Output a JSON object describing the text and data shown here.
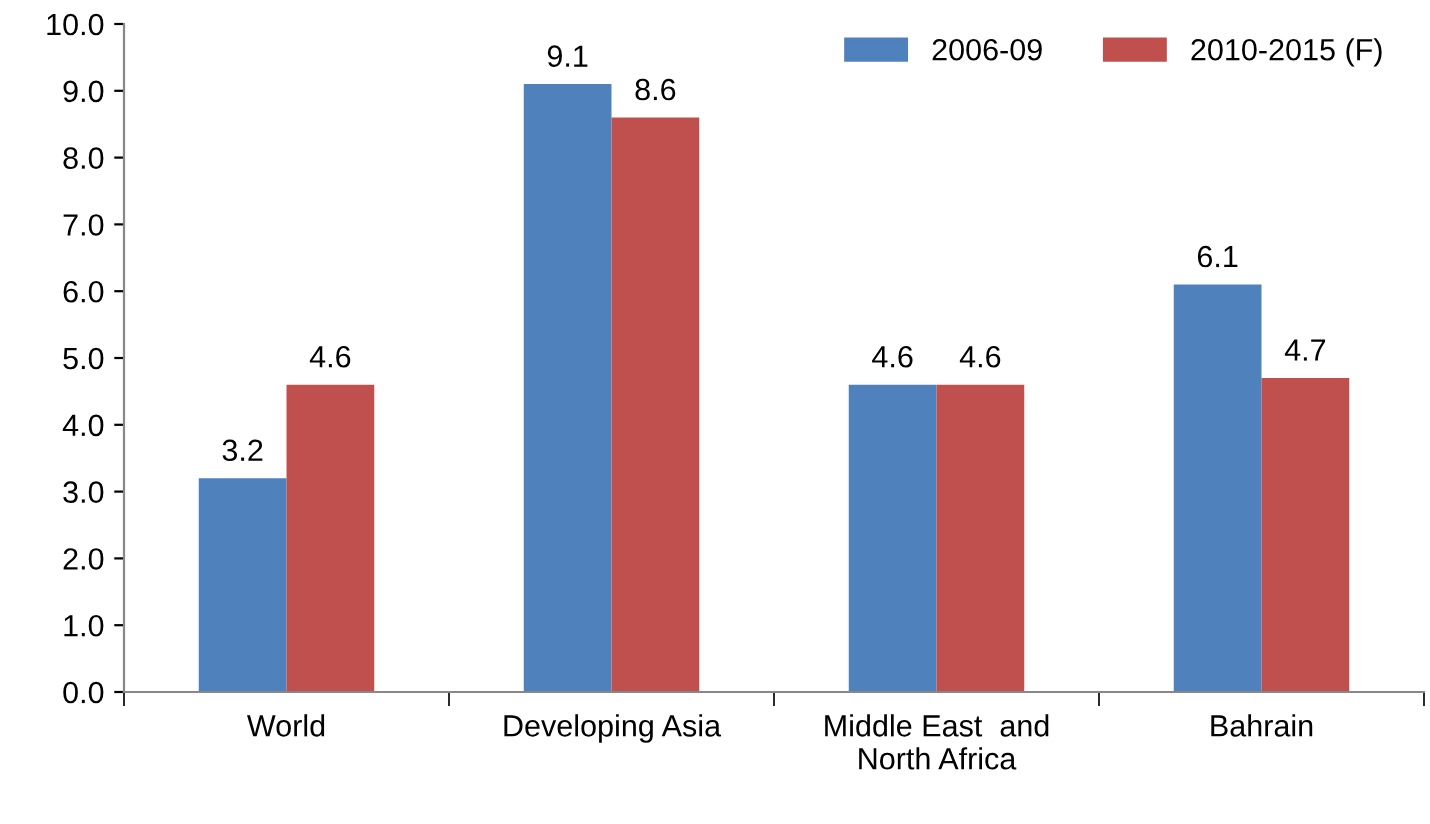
{
  "chart_data": {
    "type": "bar",
    "categories": [
      "World",
      "Developing Asia",
      "Middle East  and\nNorth Africa",
      "Bahrain"
    ],
    "series": [
      {
        "name": "2006-09",
        "color": "#4f81bd",
        "values": [
          3.2,
          9.1,
          4.6,
          6.1
        ]
      },
      {
        "name": "2010-2015 (F)",
        "color": "#c0504d",
        "values": [
          4.6,
          8.6,
          4.6,
          4.7
        ]
      }
    ],
    "ylim": [
      0,
      10
    ],
    "yticks": [
      {
        "value": 0,
        "label": "0.0"
      },
      {
        "value": 1,
        "label": "1.0"
      },
      {
        "value": 2,
        "label": "2.0"
      },
      {
        "value": 3,
        "label": "3.0"
      },
      {
        "value": 4,
        "label": "4.0"
      },
      {
        "value": 5,
        "label": "5.0"
      },
      {
        "value": 6,
        "label": "6.0"
      },
      {
        "value": 7,
        "label": "7.0"
      },
      {
        "value": 8,
        "label": "8.0"
      },
      {
        "value": 9,
        "label": "9.0"
      },
      {
        "value": 10,
        "label": "10.0"
      }
    ],
    "data_labels": true,
    "grid": false,
    "legend": "top right"
  }
}
